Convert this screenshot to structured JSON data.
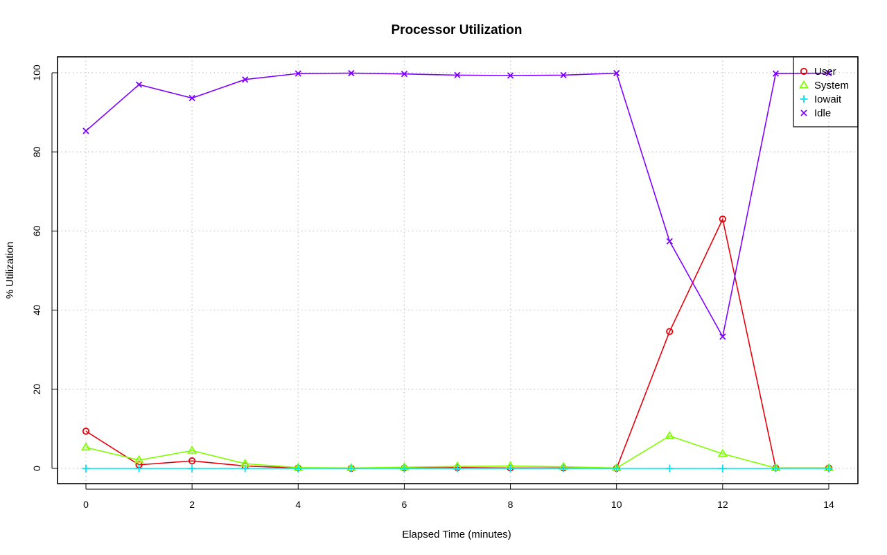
{
  "chart_data": {
    "type": "line",
    "title": "Processor Utilization",
    "xlabel": "Elapsed Time (minutes)",
    "ylabel": "% Utilization",
    "xlim": [
      0,
      14
    ],
    "ylim": [
      0,
      100
    ],
    "x_ticks": [
      "0",
      "2",
      "4",
      "6",
      "8",
      "10",
      "12",
      "14"
    ],
    "y_ticks": [
      "0",
      "20",
      "40",
      "60",
      "80",
      "100"
    ],
    "grid": true,
    "legend_position": "top-right",
    "x": [
      0,
      1,
      2,
      3,
      4,
      5,
      6,
      7,
      8,
      9,
      10,
      11,
      12,
      13,
      14
    ],
    "series": [
      {
        "name": "User",
        "color": "#e8000b",
        "marker": "circle",
        "values": [
          9.4,
          0.9,
          1.9,
          0.6,
          0.1,
          0.0,
          0.1,
          0.2,
          0.1,
          0.1,
          0.0,
          34.6,
          63.0,
          0.1,
          0.1
        ]
      },
      {
        "name": "System",
        "color": "#7fff00",
        "marker": "triangle",
        "values": [
          5.3,
          2.1,
          4.5,
          1.2,
          0.2,
          0.1,
          0.3,
          0.5,
          0.6,
          0.4,
          0.1,
          8.2,
          3.7,
          0.1,
          0.1
        ]
      },
      {
        "name": "Iowait",
        "color": "#00e5ee",
        "marker": "plus",
        "values": [
          0.0,
          0.0,
          0.0,
          0.0,
          0.0,
          0.0,
          0.0,
          0.0,
          0.0,
          0.0,
          0.0,
          0.0,
          0.0,
          0.0,
          0.0
        ]
      },
      {
        "name": "Idle",
        "color": "#7f00ff",
        "marker": "cross",
        "values": [
          85.3,
          97.0,
          93.6,
          98.3,
          99.8,
          99.9,
          99.7,
          99.4,
          99.3,
          99.4,
          99.9,
          57.4,
          33.3,
          99.8,
          99.9
        ]
      }
    ]
  }
}
